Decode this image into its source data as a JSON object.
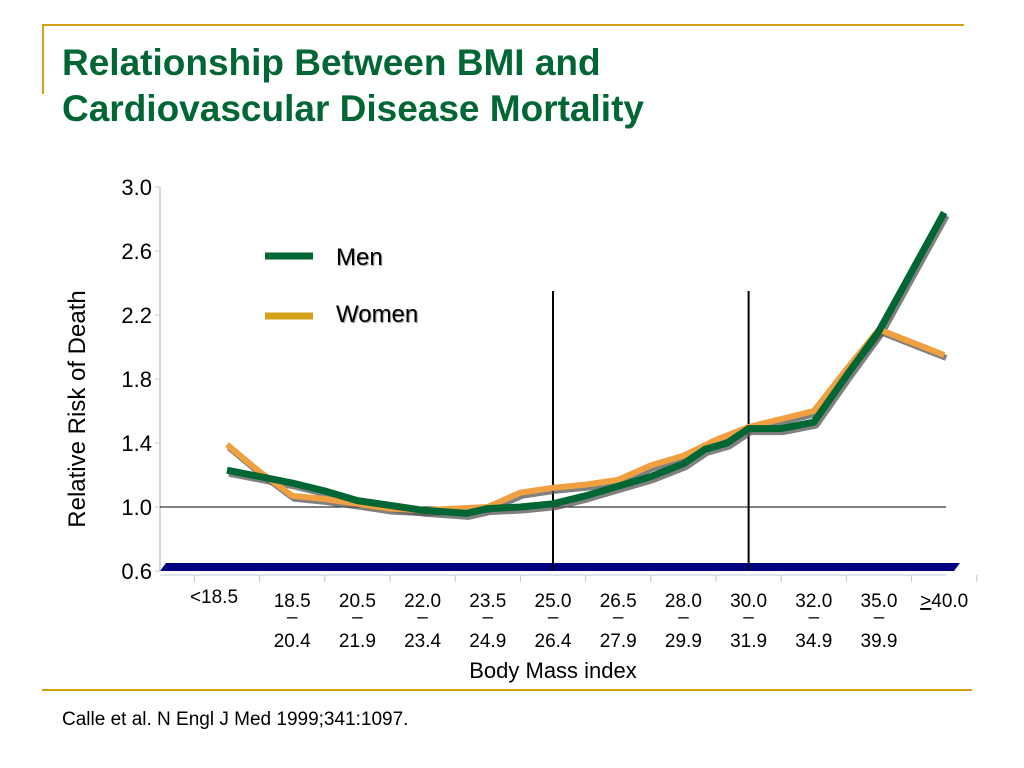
{
  "title_lines": [
    "Relationship Between BMI and",
    "Cardiovascular Disease Mortality"
  ],
  "citation": "Calle et al. N Engl J Med 1999;341:1097.",
  "colors": {
    "title": "#006633",
    "accent_rule": "#d4a017",
    "men": "#006633",
    "women": "#f0a040",
    "women_legend": "#d4a017",
    "floor": "#000080",
    "shadow": "#555555"
  },
  "chart_data": {
    "type": "line",
    "xlabel": "Body Mass index",
    "ylabel": "Relative Risk of Death",
    "ylim": [
      0.6,
      3.0
    ],
    "yticks": [
      "0.6",
      "1.0",
      "1.4",
      "1.8",
      "2.2",
      "2.6",
      "3.0"
    ],
    "categories": [
      {
        "top": "<18.5",
        "bottom": ""
      },
      {
        "top": "18.5",
        "bottom": "20.4"
      },
      {
        "top": "20.5",
        "bottom": "21.9"
      },
      {
        "top": "22.0",
        "bottom": "23.4"
      },
      {
        "top": "23.5",
        "bottom": "24.9"
      },
      {
        "top": "25.0",
        "bottom": "26.4"
      },
      {
        "top": "26.5",
        "bottom": "27.9"
      },
      {
        "top": "28.0",
        "bottom": "29.9"
      },
      {
        "top": "30.0",
        "bottom": "31.9"
      },
      {
        "top": "32.0",
        "bottom": "34.9"
      },
      {
        "top": "35.0",
        "bottom": "39.9"
      },
      {
        "top": "40.0",
        "bottom": "",
        "prefix": ">"
      }
    ],
    "series": [
      {
        "name": "Men",
        "x": [
          0,
          0.5,
          1,
          1.5,
          2,
          2.5,
          3,
          3.33,
          3.67,
          4,
          4.5,
          5,
          5.5,
          6,
          6.5,
          7,
          7.33,
          7.67,
          8,
          8.5,
          9,
          9.5,
          10,
          10.5,
          11
        ],
        "values": [
          1.23,
          1.19,
          1.15,
          1.1,
          1.04,
          1.01,
          0.98,
          0.97,
          0.96,
          0.99,
          1.0,
          1.02,
          1.07,
          1.13,
          1.19,
          1.27,
          1.36,
          1.4,
          1.49,
          1.49,
          1.53,
          1.82,
          2.1,
          2.47,
          2.84
        ]
      },
      {
        "name": "Women",
        "x": [
          0,
          0.5,
          1,
          1.5,
          2,
          2.5,
          3,
          3.5,
          4,
          4.5,
          5,
          5.5,
          6,
          6.5,
          7,
          7.5,
          8,
          8.5,
          9,
          9.5,
          10,
          10.5,
          11
        ],
        "values": [
          1.39,
          1.22,
          1.07,
          1.05,
          1.02,
          0.99,
          0.98,
          0.99,
          1.0,
          1.09,
          1.12,
          1.14,
          1.17,
          1.26,
          1.32,
          1.42,
          1.5,
          1.55,
          1.6,
          1.86,
          2.11,
          2.03,
          1.95
        ]
      }
    ],
    "reference_line": 1.0,
    "vertical_markers_at_category": [
      5,
      8
    ],
    "grid": false,
    "legend_position": "top-left"
  }
}
